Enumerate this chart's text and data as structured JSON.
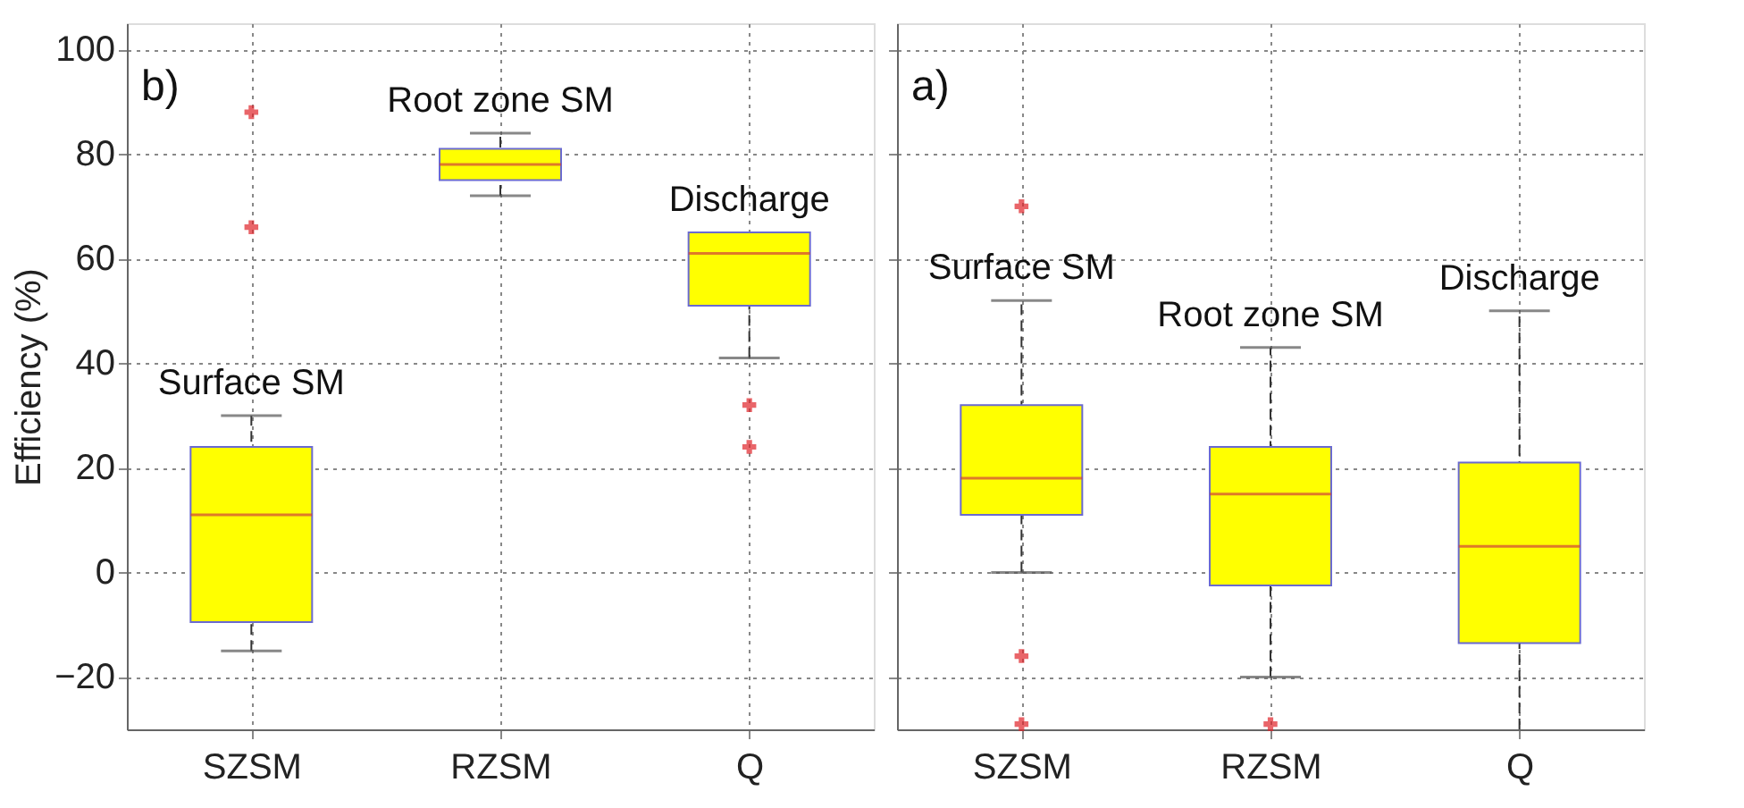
{
  "chart_data": [
    {
      "type": "box",
      "categories": [
        "SZSM",
        "RZSM",
        "Q"
      ],
      "ylabel": "Efficiency (%)",
      "ylim": [
        -30,
        105
      ],
      "yticks": [
        -20,
        0,
        20,
        40,
        60,
        80,
        100
      ],
      "grid": true,
      "series": [
        {
          "color": "#ffff00",
          "boxes": [
            {
              "low": -15,
              "q1": -9.5,
              "median": 11,
              "q3": 24,
              "high": 30,
              "outliers": [
                88,
                66
              ]
            },
            {
              "low": 72,
              "q1": 75,
              "median": 78,
              "q3": 81,
              "high": 84
            },
            {
              "low": 41,
              "q1": 51,
              "median": 61,
              "q3": 65,
              "high": 65,
              "outliers": [
                32,
                24
              ]
            }
          ]
        }
      ],
      "annotations": [
        "b)",
        "Surface SM",
        "Root zone SM",
        "Discharge"
      ]
    },
    {
      "type": "box",
      "categories": [
        "SZSM",
        "RZSM",
        "Q"
      ],
      "ylim": [
        -30,
        105
      ],
      "yticks": [
        -20,
        0,
        20,
        40,
        60,
        80,
        100
      ],
      "grid": true,
      "tick_labels": "x",
      "series": [
        {
          "color": "#ffff00",
          "boxes": [
            {
              "low": 0,
              "q1": 11,
              "median": 18,
              "q3": 32,
              "high": 52,
              "outliers": [
                70,
                -16,
                -29
              ]
            },
            {
              "low": -20,
              "q1": -2.5,
              "median": 15,
              "q3": 24,
              "high": 43,
              "outliers": [
                -29
              ]
            },
            {
              "low": -30,
              "q1": -13.5,
              "median": 5,
              "q3": 21,
              "high": 50
            }
          ]
        }
      ],
      "annotations": [
        "a)",
        "Surface SM",
        "Root zone SM",
        "Discharge"
      ]
    }
  ]
}
